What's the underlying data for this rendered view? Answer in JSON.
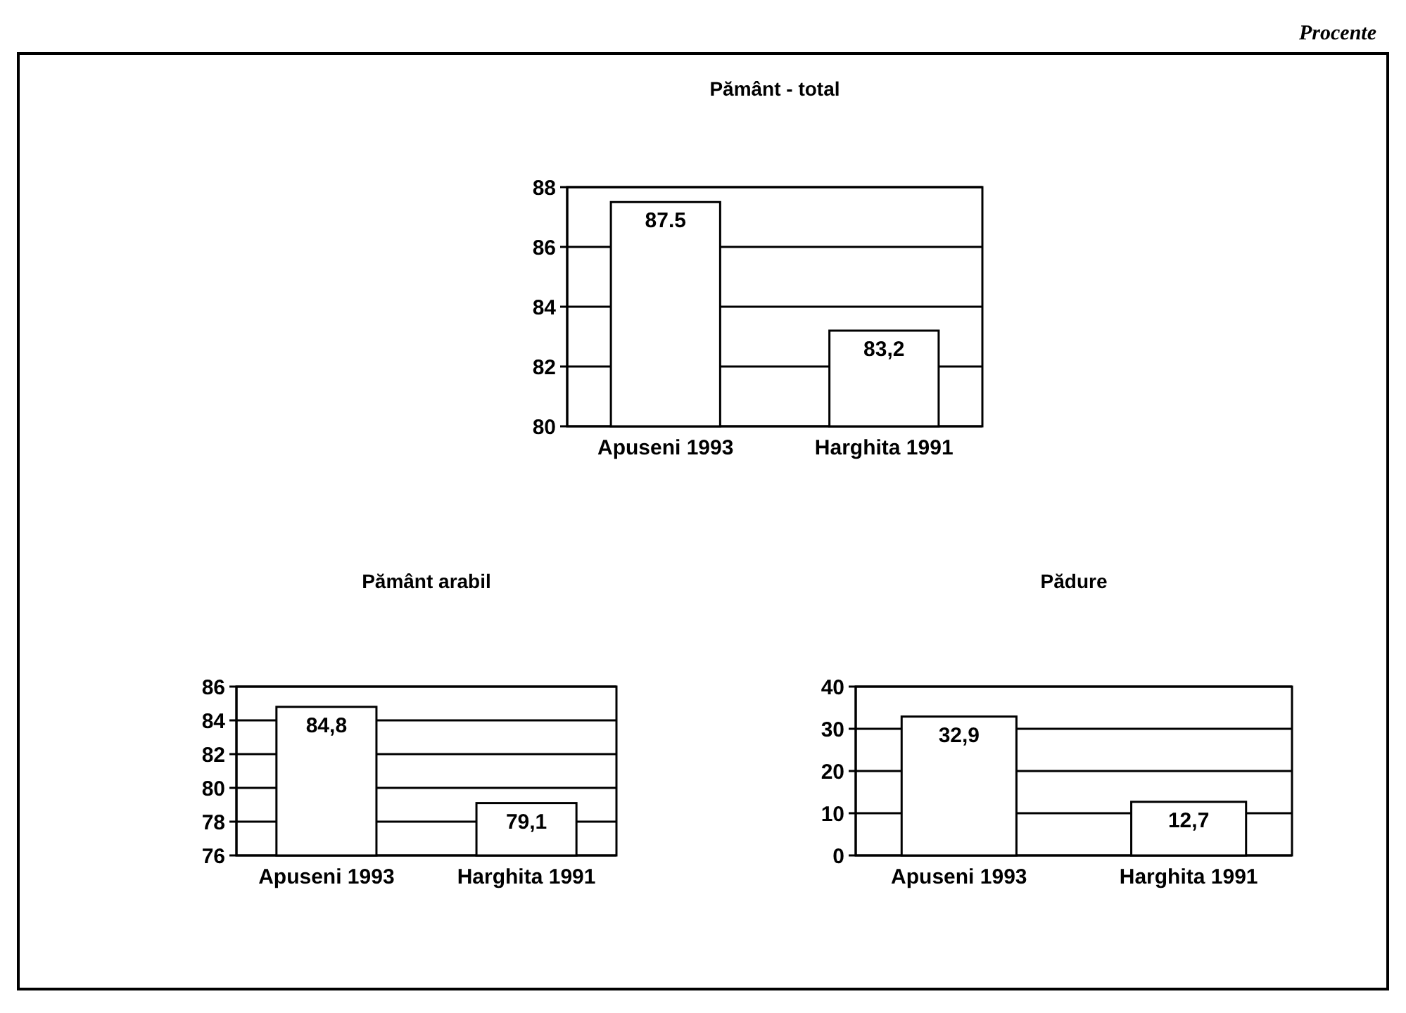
{
  "chart_data": [
    {
      "type": "bar",
      "title": "Pământ - total",
      "categories": [
        "Apuseni 1993",
        "Harghita 1991"
      ],
      "values": [
        87.5,
        83.2
      ],
      "value_labels": [
        "87.5",
        "83,2"
      ],
      "color": "#ffffff",
      "ylim": [
        80,
        88
      ],
      "yticks": [
        80,
        82,
        84,
        86,
        88
      ],
      "grid": "y",
      "annotations": [
        "Procente"
      ]
    },
    {
      "type": "bar",
      "title": "Pământ arabil",
      "categories": [
        "Apuseni 1993",
        "Harghita 1991"
      ],
      "values": [
        84.8,
        79.1
      ],
      "value_labels": [
        "84,8",
        "79,1"
      ],
      "color": "#ffffff",
      "ylim": [
        76,
        86
      ],
      "yticks": [
        76,
        78,
        80,
        82,
        84,
        86
      ],
      "grid": "y"
    },
    {
      "type": "bar",
      "title": "Pădure",
      "categories": [
        "Apuseni 1993",
        "Harghita 1991"
      ],
      "values": [
        32.9,
        12.7
      ],
      "value_labels": [
        "32,9",
        "12,7"
      ],
      "color": "#ffffff",
      "ylim": [
        0,
        40
      ],
      "yticks": [
        0,
        10,
        20,
        30,
        40
      ],
      "grid": "y"
    }
  ]
}
